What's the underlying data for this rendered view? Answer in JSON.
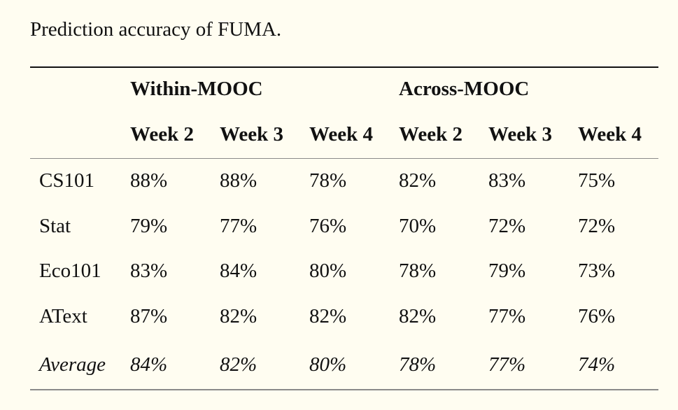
{
  "caption": "Prediction accuracy of FUMA.",
  "table": {
    "groups": [
      "Within-MOOC",
      "Across-MOOC"
    ],
    "columns": [
      "Week 2",
      "Week 3",
      "Week 4",
      "Week 2",
      "Week 3",
      "Week 4"
    ],
    "rows": [
      {
        "label": "CS101",
        "values": [
          "88%",
          "88%",
          "78%",
          "82%",
          "83%",
          "75%"
        ]
      },
      {
        "label": "Stat",
        "values": [
          "79%",
          "77%",
          "76%",
          "70%",
          "72%",
          "72%"
        ]
      },
      {
        "label": "Eco101",
        "values": [
          "83%",
          "84%",
          "80%",
          "78%",
          "79%",
          "73%"
        ]
      },
      {
        "label": "AText",
        "values": [
          "87%",
          "82%",
          "82%",
          "82%",
          "77%",
          "76%"
        ]
      },
      {
        "label": "Average",
        "values": [
          "84%",
          "82%",
          "80%",
          "78%",
          "77%",
          "74%"
        ]
      }
    ]
  }
}
